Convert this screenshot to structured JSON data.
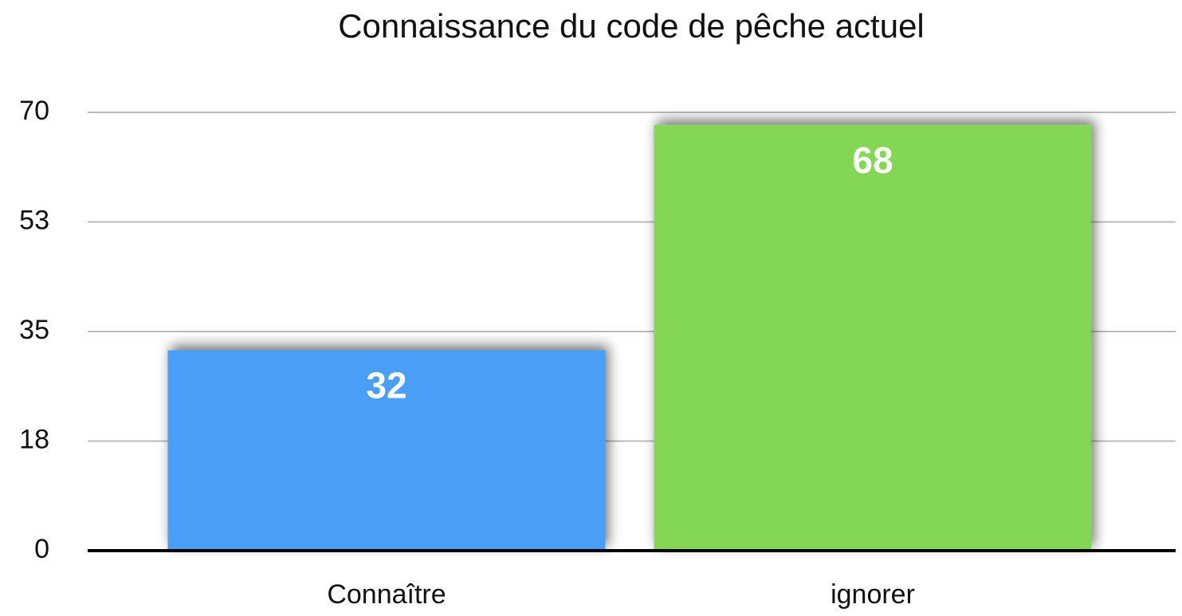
{
  "chart_data": {
    "type": "bar",
    "title": "Connaissance du code de pêche actuel",
    "categories": [
      "Connaître",
      "ignorer"
    ],
    "values": [
      32,
      68
    ],
    "colors": [
      "#4a9ff5",
      "#84d655"
    ],
    "ylim": [
      0,
      70
    ],
    "yticks": [
      0,
      {
        "value": 17.5,
        "label": "18"
      },
      35,
      {
        "value": 52.5,
        "label": "53"
      },
      70
    ],
    "grid": true
  }
}
